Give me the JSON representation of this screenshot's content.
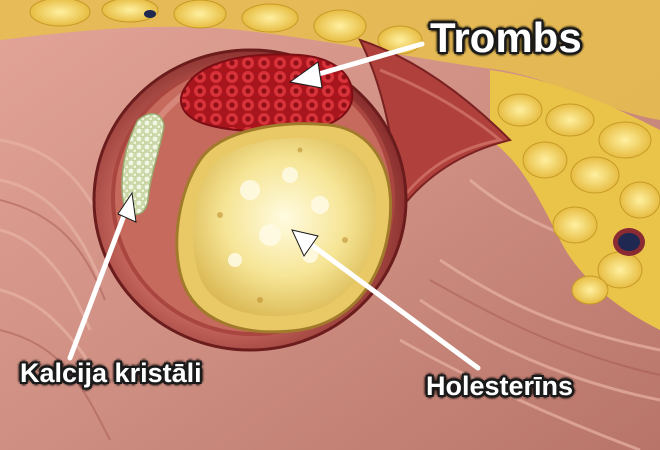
{
  "labels": {
    "thrombus": "Trombs",
    "calcium": "Kalcija kristāli",
    "cholesterol": "Holesterīns"
  },
  "colors": {
    "tissue": "#d9998c",
    "vessel_wall": "#9e2f2e",
    "plaque": "#f3dc7a",
    "thrombus": "#c8222a",
    "fat": "#f0cc3c",
    "calcium": "#dfe7c8"
  }
}
